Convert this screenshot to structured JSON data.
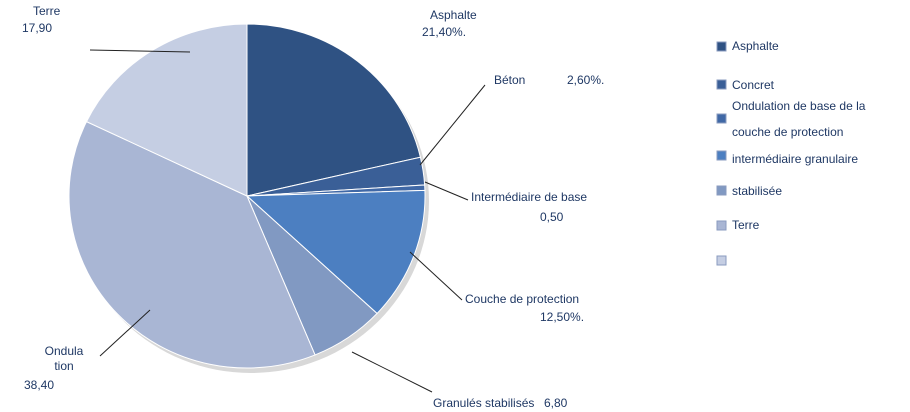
{
  "chart_data": {
    "type": "pie",
    "categories": [
      "Asphalte",
      "Béton",
      "Intermédiaire de base",
      "Couche de protection",
      "Granulés stabilisés",
      "Ondula tion",
      "Terre"
    ],
    "values": [
      21.4,
      2.6,
      0.5,
      12.5,
      6.8,
      38.4,
      17.9
    ],
    "value_labels": [
      "21,40%.",
      "2,60%.",
      "0,50",
      "12,50%.",
      "6,80",
      "38,40",
      "17,90"
    ],
    "colors": [
      "#2f5283",
      "#3a5f97",
      "#4068a6",
      "#4c7fc1",
      "#8199c2",
      "#a9b6d4",
      "#c5cee3"
    ],
    "legend": {
      "labels": [
        "Asphalte",
        "Concret",
        "Ondulation de base de la",
        "couche de protection",
        "intermédiaire granulaire",
        "stabilisée",
        "Terre"
      ],
      "colors": [
        "#2f5283",
        "#3a5f97",
        "#4068a6",
        "#4c7fc1",
        "#8199c2",
        "#a9b6d4",
        "#c5cee3"
      ]
    }
  }
}
